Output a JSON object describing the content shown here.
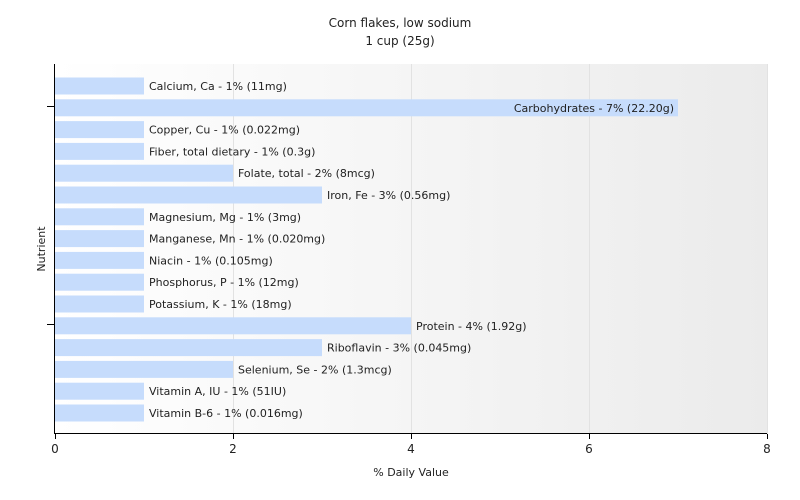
{
  "chart_data": {
    "type": "bar",
    "orientation": "horizontal",
    "title": "Corn flakes, low sodium",
    "subtitle": "1 cup (25g)",
    "xlabel": "% Daily Value",
    "ylabel": "Nutrient",
    "xlim": [
      0,
      8
    ],
    "xticks": [
      "0",
      "2",
      "4",
      "6",
      "8"
    ],
    "grid": true,
    "bar_color": "#c6dcfc",
    "categories": [
      "Calcium, Ca",
      "Carbohydrates",
      "Copper, Cu",
      "Fiber, total dietary",
      "Folate, total",
      "Iron, Fe",
      "Magnesium, Mg",
      "Manganese, Mn",
      "Niacin",
      "Phosphorus, P",
      "Potassium, K",
      "Protein",
      "Riboflavin",
      "Selenium, Se",
      "Vitamin A, IU",
      "Vitamin B-6"
    ],
    "values": [
      1,
      7,
      1,
      1,
      2,
      3,
      1,
      1,
      1,
      1,
      1,
      4,
      3,
      2,
      1,
      1
    ],
    "labels": [
      "Calcium, Ca - 1% (11mg)",
      "Carbohydrates - 7% (22.20g)",
      "Copper, Cu - 1% (0.022mg)",
      "Fiber, total dietary - 1% (0.3g)",
      "Folate, total - 2% (8mcg)",
      "Iron, Fe - 3% (0.56mg)",
      "Magnesium, Mg - 1% (3mg)",
      "Manganese, Mn - 1% (0.020mg)",
      "Niacin - 1% (0.105mg)",
      "Phosphorus, P - 1% (12mg)",
      "Potassium, K - 1% (18mg)",
      "Protein - 4% (1.92g)",
      "Riboflavin - 3% (0.045mg)",
      "Selenium, Se - 2% (1.3mcg)",
      "Vitamin A, IU - 1% (51IU)",
      "Vitamin B-6 - 1% (0.016mg)"
    ]
  }
}
